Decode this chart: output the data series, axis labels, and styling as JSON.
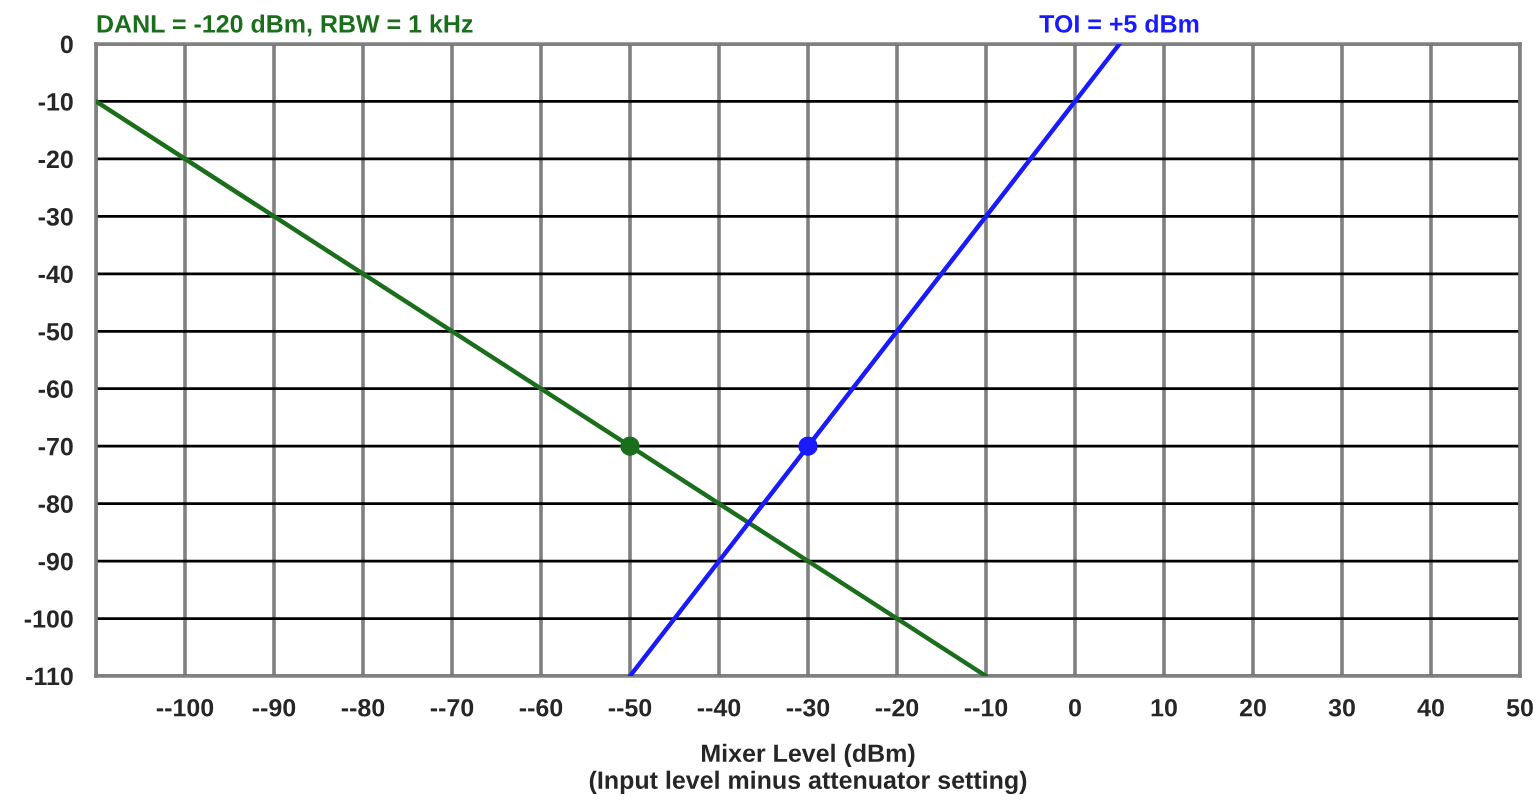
{
  "chart_data": {
    "type": "line",
    "xlabel": "Mixer Level (dBm)\n(Input level minus attenuator setting)",
    "xlim": [
      -110,
      50
    ],
    "ylim": [
      -110,
      0
    ],
    "xticks": [
      {
        "value": -110,
        "label": null
      },
      {
        "value": -100,
        "label": "--100"
      },
      {
        "value": -90,
        "label": "--90"
      },
      {
        "value": -80,
        "label": "--80"
      },
      {
        "value": -70,
        "label": "--70"
      },
      {
        "value": -60,
        "label": "--60"
      },
      {
        "value": -50,
        "label": "--50"
      },
      {
        "value": -40,
        "label": "--40"
      },
      {
        "value": -30,
        "label": "--30"
      },
      {
        "value": -20,
        "label": "--20"
      },
      {
        "value": -10,
        "label": "--10"
      },
      0,
      10,
      20,
      30,
      40,
      50
    ],
    "yticks": [
      0,
      -10,
      -20,
      -30,
      -40,
      -50,
      -60,
      -70,
      -80,
      -90,
      -100,
      -110
    ],
    "grid": true,
    "legend": false,
    "marker": "none",
    "line_style": "solid",
    "series": [
      {
        "name": "DANL = -120 dBm, RBW = 1 kHz",
        "color": "#1b6e1b",
        "x": [
          -110,
          -10
        ],
        "values": [
          -10,
          -110
        ]
      },
      {
        "name": "TOI = +5 dBm",
        "color": "#1a1aff",
        "x": [
          -50,
          5
        ],
        "values": [
          -110,
          0
        ]
      },
      {
        "type": "scatter",
        "marker": "circle",
        "color": "#1b6e1b",
        "x": [
          -50
        ],
        "values": [
          -70
        ]
      },
      {
        "type": "scatter",
        "marker": "circle",
        "color": "#1a1aff",
        "x": [
          -30
        ],
        "values": [
          -70
        ]
      }
    ]
  }
}
